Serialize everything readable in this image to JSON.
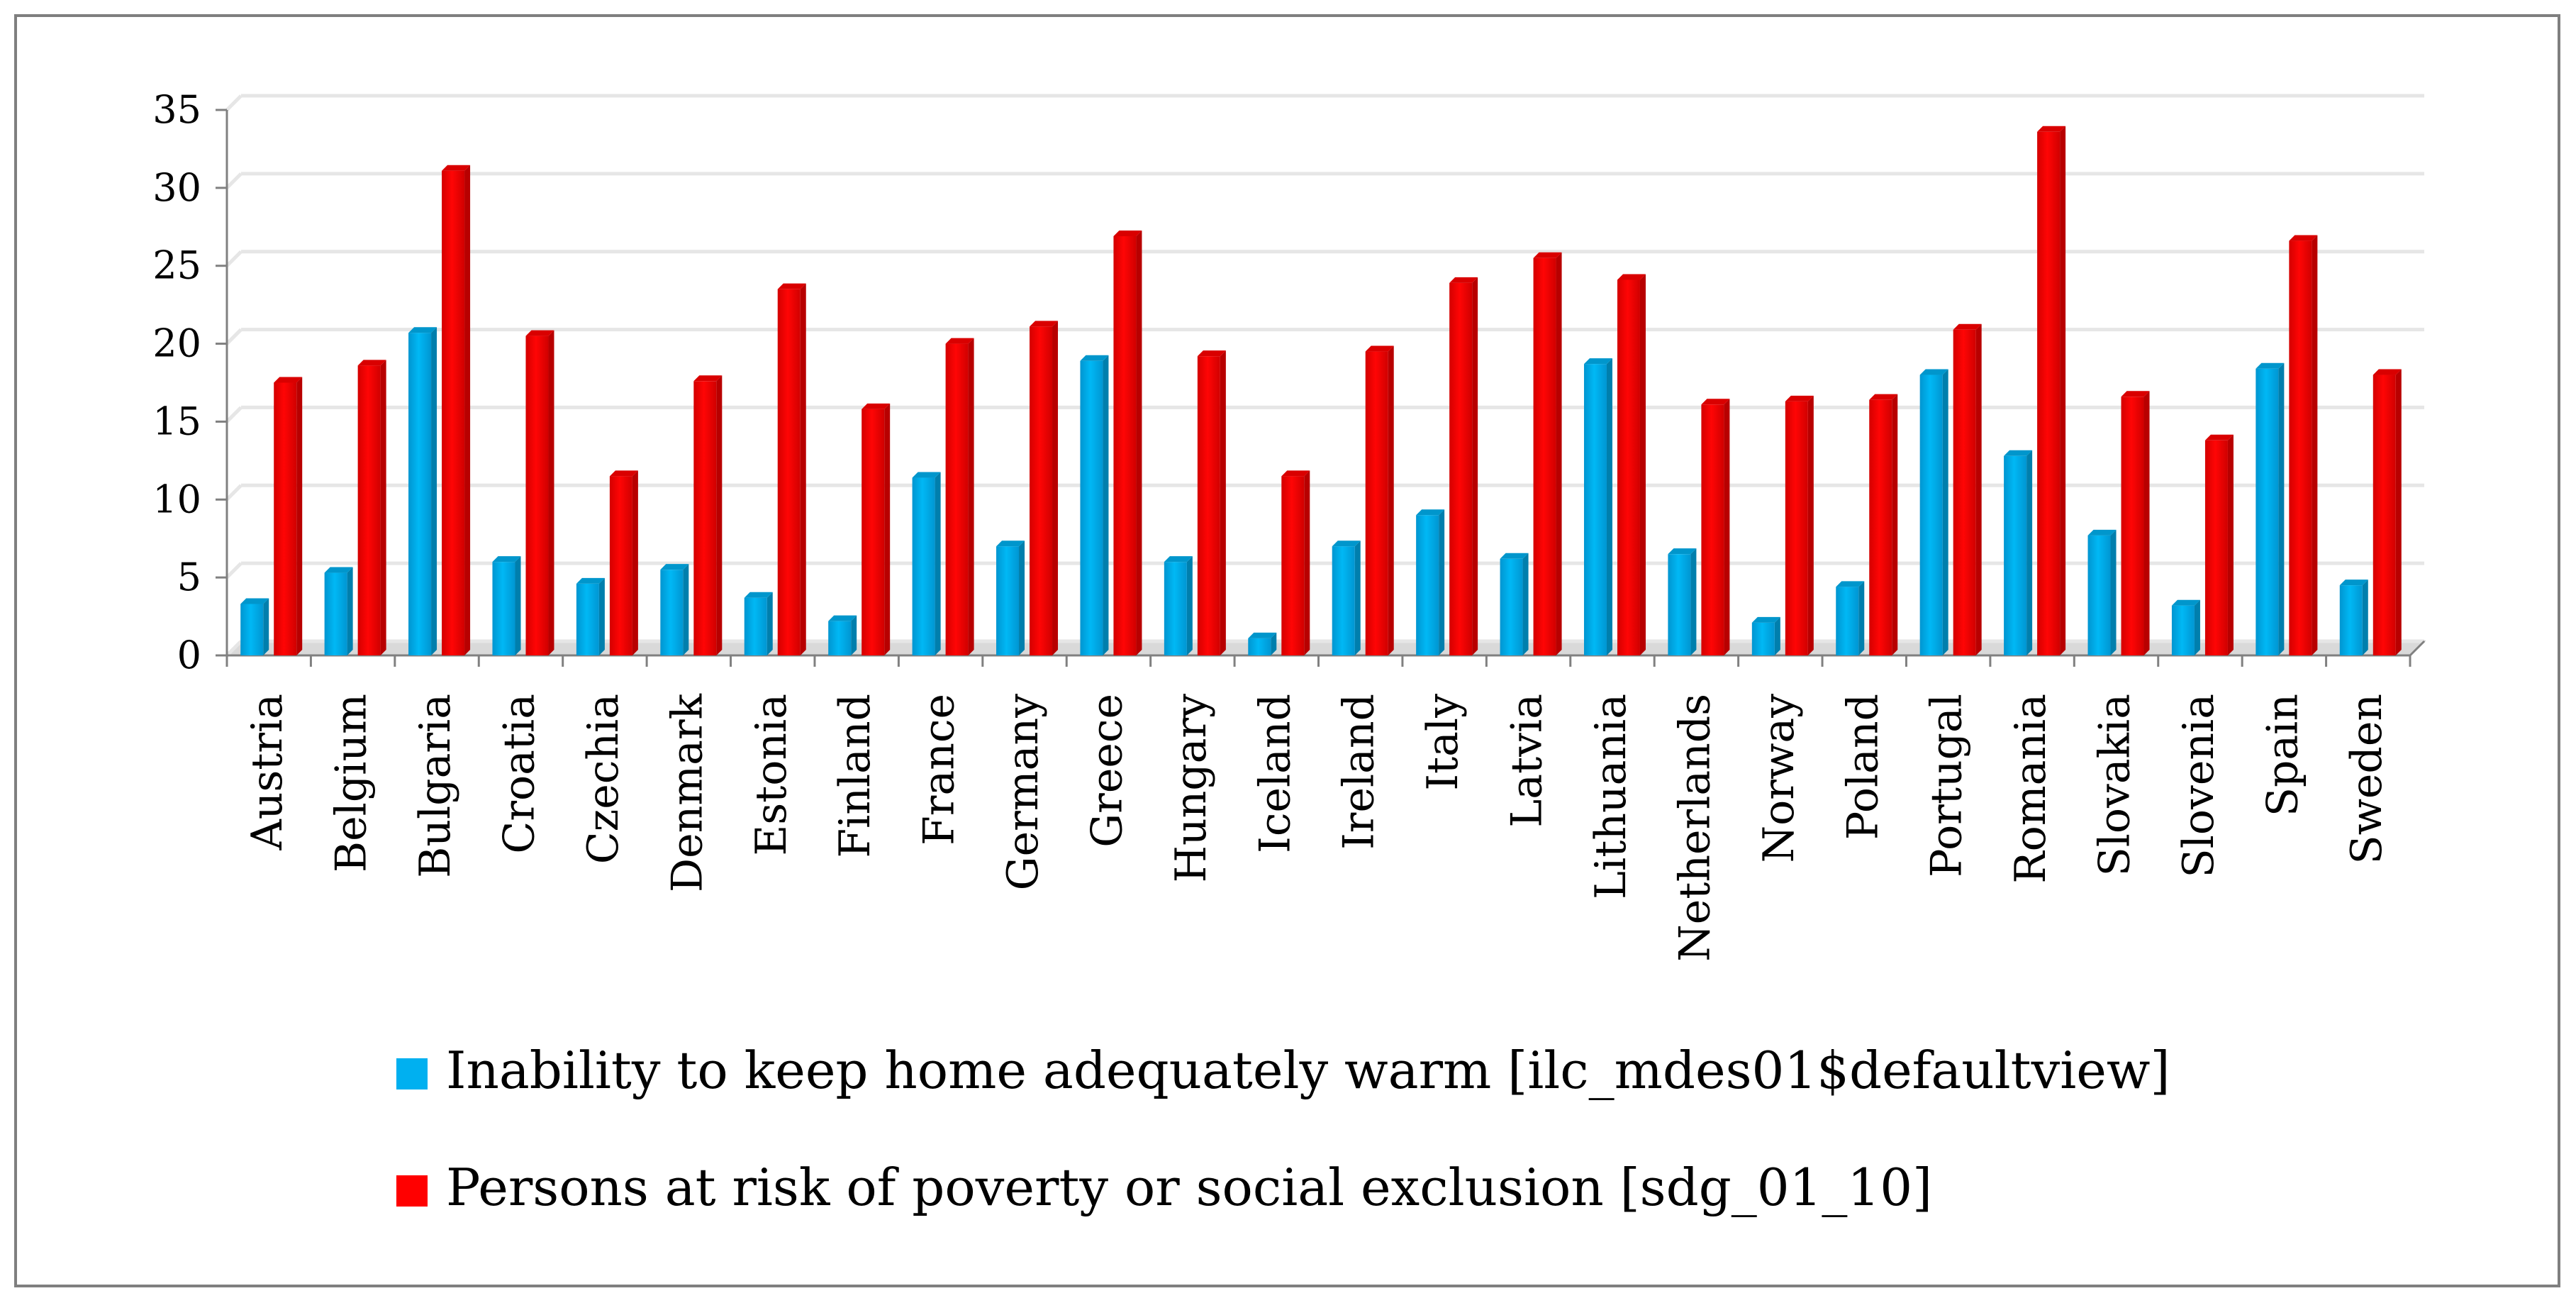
{
  "chart_data": {
    "type": "bar",
    "title": "",
    "xlabel": "",
    "ylabel": "",
    "ylim": [
      0,
      35
    ],
    "yticks": [
      0,
      5,
      10,
      15,
      20,
      25,
      30,
      35
    ],
    "yticks_labels": [
      "0",
      "5",
      "10",
      "15",
      "20",
      "25",
      "30",
      "35"
    ],
    "grid": true,
    "legend_position": "bottom",
    "categories": [
      "Austria",
      "Belgium",
      "Bulgaria",
      "Croatia",
      "Czechia",
      "Denmark",
      "Estonia",
      "Finland",
      "France",
      "Germany",
      "Greece",
      "Hungary",
      "Iceland",
      "Ireland",
      "Italy",
      "Latvia",
      "Lithuania",
      "Netherlands",
      "Norway",
      "Poland",
      "Portugal",
      "Romania",
      "Slovakia",
      "Slovenia",
      "Spain",
      "Sweden"
    ],
    "series": [
      {
        "name": "Inability to keep home adequately warm [ilc_mdes01$defaultview]",
        "color": "#00b0f0",
        "values": [
          3.3,
          5.3,
          20.7,
          6.0,
          4.6,
          5.5,
          3.7,
          2.2,
          11.4,
          7.0,
          18.9,
          6.0,
          1.1,
          7.0,
          9.0,
          6.2,
          18.7,
          6.5,
          2.1,
          4.4,
          18.0,
          12.8,
          7.7,
          3.2,
          18.4,
          4.5
        ]
      },
      {
        "name": "Persons at risk of poverty or social exclusion [sdg_01_10]",
        "color": "#ff0000",
        "values": [
          17.5,
          18.6,
          31.1,
          20.5,
          11.5,
          17.6,
          23.5,
          15.8,
          20.0,
          21.1,
          26.9,
          19.2,
          11.5,
          19.5,
          23.9,
          25.5,
          24.1,
          16.1,
          16.3,
          16.4,
          20.9,
          33.6,
          16.6,
          13.8,
          26.6,
          18.0
        ]
      }
    ]
  }
}
